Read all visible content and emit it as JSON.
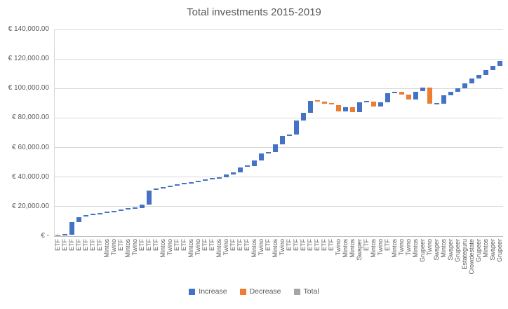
{
  "chart_title": "Total investments 2015-2019",
  "colors": {
    "increase": "#4472C4",
    "decrease": "#ED7D31",
    "total": "#A5A5A5",
    "gridline": "#D9D9D9",
    "axis_text": "#595959"
  },
  "legend": {
    "increase_label": "Increase",
    "decrease_label": "Decrease",
    "total_label": "Total"
  },
  "chart_data": {
    "type": "bar",
    "subtype": "waterfall",
    "title": "Total investments 2015-2019",
    "xlabel": "",
    "ylabel": "",
    "ylim": [
      0,
      140000
    ],
    "grid": true,
    "legend_position": "bottom",
    "y_tick_labels": [
      "€ 140,000.00",
      "€ 120,000.00",
      "€ 100,000.00",
      "€ 80,000.00",
      "€ 60,000.00",
      "€ 40,000.00",
      "€ 20,000.00",
      "€ -"
    ],
    "y_tick_values": [
      140000,
      120000,
      100000,
      80000,
      60000,
      40000,
      20000,
      0
    ],
    "final_total": 118600,
    "series": [
      {
        "label": "ETF",
        "delta": 400,
        "type": "total"
      },
      {
        "label": "ETF",
        "delta": 700,
        "type": "increase"
      },
      {
        "label": "ETF",
        "delta": 8400,
        "type": "increase"
      },
      {
        "label": "ETF",
        "delta": 3400,
        "type": "increase"
      },
      {
        "label": "ETF",
        "delta": 800,
        "type": "increase"
      },
      {
        "label": "ETF",
        "delta": 800,
        "type": "increase"
      },
      {
        "label": "ETF",
        "delta": 700,
        "type": "increase"
      },
      {
        "label": "Mintos",
        "delta": 800,
        "type": "increase"
      },
      {
        "label": "Twino",
        "delta": 800,
        "type": "increase"
      },
      {
        "label": "ETF",
        "delta": 700,
        "type": "increase"
      },
      {
        "label": "Mintos",
        "delta": 800,
        "type": "increase"
      },
      {
        "label": "Twino",
        "delta": 700,
        "type": "increase"
      },
      {
        "label": "ETF",
        "delta": 2400,
        "type": "increase"
      },
      {
        "label": "ETF",
        "delta": 9500,
        "type": "increase"
      },
      {
        "label": "ETF",
        "delta": 900,
        "type": "increase"
      },
      {
        "label": "Mintos",
        "delta": 900,
        "type": "increase"
      },
      {
        "label": "Twino",
        "delta": 900,
        "type": "increase"
      },
      {
        "label": "ETF",
        "delta": 900,
        "type": "increase"
      },
      {
        "label": "ETF",
        "delta": 900,
        "type": "increase"
      },
      {
        "label": "Mintos",
        "delta": 900,
        "type": "increase"
      },
      {
        "label": "Twino",
        "delta": 900,
        "type": "increase"
      },
      {
        "label": "ETF",
        "delta": 900,
        "type": "increase"
      },
      {
        "label": "ETF",
        "delta": 900,
        "type": "increase"
      },
      {
        "label": "Mintos",
        "delta": 1000,
        "type": "increase"
      },
      {
        "label": "Twino",
        "delta": 1600,
        "type": "increase"
      },
      {
        "label": "ETF",
        "delta": 1700,
        "type": "increase"
      },
      {
        "label": "ETF",
        "delta": 3400,
        "type": "increase"
      },
      {
        "label": "ETF",
        "delta": 900,
        "type": "increase"
      },
      {
        "label": "Mintos",
        "delta": 3800,
        "type": "increase"
      },
      {
        "label": "Twino",
        "delta": 4600,
        "type": "increase"
      },
      {
        "label": "ETF",
        "delta": 1000,
        "type": "increase"
      },
      {
        "label": "Mintos",
        "delta": 5200,
        "type": "increase"
      },
      {
        "label": "Twino",
        "delta": 5700,
        "type": "increase"
      },
      {
        "label": "ETF",
        "delta": 1000,
        "type": "increase"
      },
      {
        "label": "ETF",
        "delta": 9500,
        "type": "increase"
      },
      {
        "label": "ETF",
        "delta": 5200,
        "type": "increase"
      },
      {
        "label": "ETF",
        "delta": 7800,
        "type": "increase"
      },
      {
        "label": "ETF",
        "delta": -400,
        "type": "decrease"
      },
      {
        "label": "ETF",
        "delta": -1500,
        "type": "decrease"
      },
      {
        "label": "ETF",
        "delta": -900,
        "type": "decrease"
      },
      {
        "label": "Twino",
        "delta": -4000,
        "type": "decrease"
      },
      {
        "label": "Mintos",
        "delta": 2600,
        "type": "increase"
      },
      {
        "label": "Mintos",
        "delta": -3000,
        "type": "decrease"
      },
      {
        "label": "Swaper",
        "delta": 6300,
        "type": "increase"
      },
      {
        "label": "ETF",
        "delta": 600,
        "type": "increase"
      },
      {
        "label": "Mintos",
        "delta": -3400,
        "type": "decrease"
      },
      {
        "label": "Twino",
        "delta": 2900,
        "type": "increase"
      },
      {
        "label": "ETF",
        "delta": 6100,
        "type": "increase"
      },
      {
        "label": "Mintos",
        "delta": 1000,
        "type": "increase"
      },
      {
        "label": "Twino",
        "delta": -1900,
        "type": "decrease"
      },
      {
        "label": "Twino",
        "delta": -3400,
        "type": "decrease"
      },
      {
        "label": "Mintos",
        "delta": 5600,
        "type": "increase"
      },
      {
        "label": "Grupeer",
        "delta": 2700,
        "type": "increase"
      },
      {
        "label": "Twino",
        "delta": -11200,
        "type": "decrease"
      },
      {
        "label": "Swaper",
        "delta": 400,
        "type": "increase"
      },
      {
        "label": "Mintos",
        "delta": 5300,
        "type": "increase"
      },
      {
        "label": "Swaper",
        "delta": 2600,
        "type": "increase"
      },
      {
        "label": "Grupeer",
        "delta": 2400,
        "type": "increase"
      },
      {
        "label": "Estateguru",
        "delta": 3400,
        "type": "increase"
      },
      {
        "label": "Crowdestate",
        "delta": 3000,
        "type": "increase"
      },
      {
        "label": "Grupeer",
        "delta": 2600,
        "type": "increase"
      },
      {
        "label": "Mintos",
        "delta": 3300,
        "type": "increase"
      },
      {
        "label": "Swaper",
        "delta": 2900,
        "type": "increase"
      },
      {
        "label": "Grupeer",
        "delta": 3200,
        "type": "increase"
      }
    ]
  }
}
